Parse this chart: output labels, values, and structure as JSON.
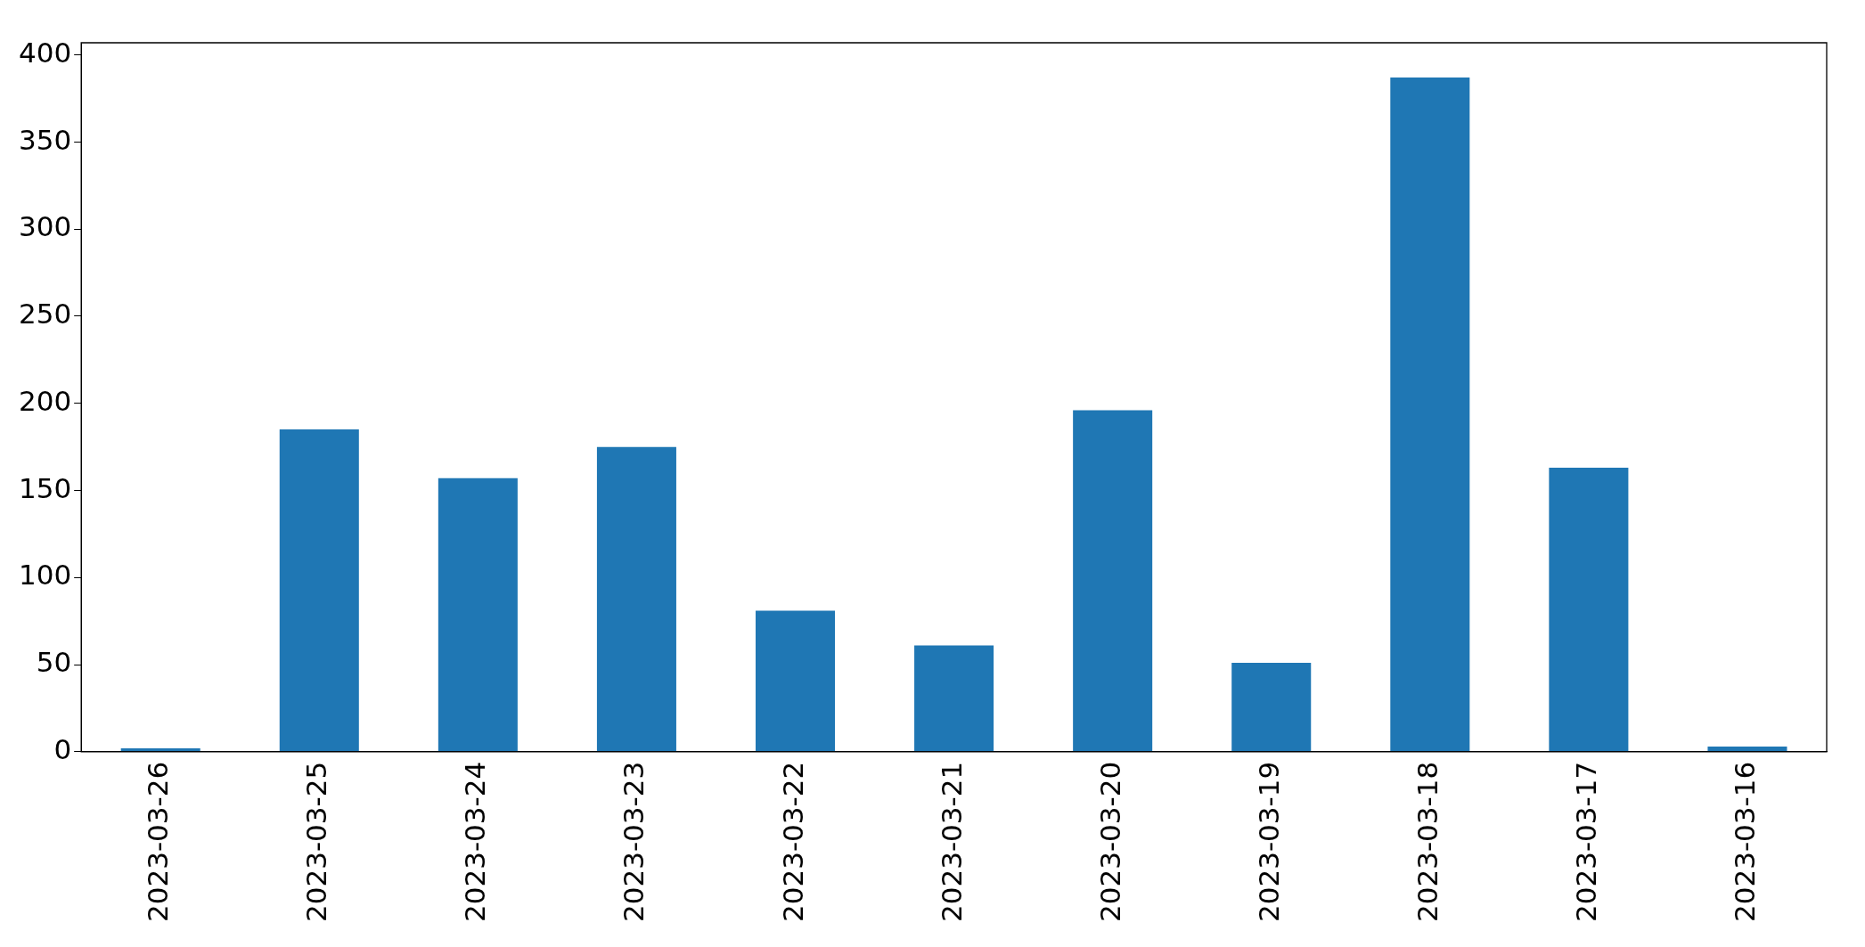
{
  "chart_data": {
    "type": "bar",
    "categories": [
      "2023-03-26",
      "2023-03-25",
      "2023-03-24",
      "2023-03-23",
      "2023-03-22",
      "2023-03-21",
      "2023-03-20",
      "2023-03-19",
      "2023-03-18",
      "2023-03-17",
      "2023-03-16"
    ],
    "values": [
      2,
      185,
      157,
      175,
      81,
      61,
      196,
      51,
      387,
      163,
      3
    ],
    "color": "#1f77b4",
    "ylim": [
      0,
      407
    ],
    "yticks": [
      0,
      50,
      100,
      150,
      200,
      250,
      300,
      350,
      400
    ],
    "grid": false,
    "legend": false
  }
}
